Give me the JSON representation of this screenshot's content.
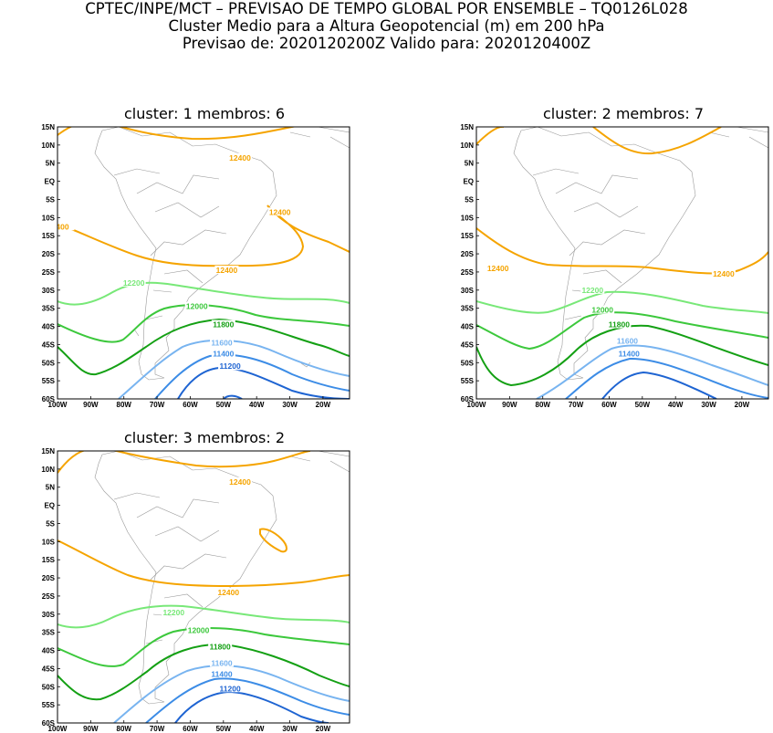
{
  "header": {
    "line1": "CPTEC/INPE/MCT – PREVISAO DE TEMPO GLOBAL POR ENSEMBLE – TQ0126L028",
    "line2": "Cluster Medio para a Altura Geopotencial (m) em 200 hPa",
    "line3": "Previsao de: 2020120200Z    Valido para: 2020120400Z"
  },
  "axes": {
    "lat_labels": [
      "15N",
      "10N",
      "5N",
      "EQ",
      "5S",
      "10S",
      "15S",
      "20S",
      "25S",
      "30S",
      "35S",
      "40S",
      "45S",
      "50S",
      "55S",
      "60S"
    ],
    "lon_labels": [
      "100W",
      "90W",
      "80W",
      "70W",
      "60W",
      "50W",
      "40W",
      "30W",
      "20W"
    ]
  },
  "contour_colors": {
    "12400": "#f5a400",
    "12200": "#78e878",
    "12000": "#3cc83c",
    "11800": "#14a014",
    "11600": "#78b4f0",
    "11400": "#3c8ce6",
    "11200": "#1e64d2"
  },
  "panels": [
    {
      "title": "cluster: 1   membros: 6",
      "labels": [
        {
          "text": "12400",
          "lon": -45,
          "lat": 6.5
        },
        {
          "text": "12400",
          "lon": -33,
          "lat": -8.5
        },
        {
          "text": "400",
          "lon": -98.5,
          "lat": -12.5
        },
        {
          "text": "12400",
          "lon": -49,
          "lat": -24.5
        },
        {
          "text": "12200",
          "lon": -77,
          "lat": -28
        },
        {
          "text": "12000",
          "lon": -58,
          "lat": -34.5
        },
        {
          "text": "11800",
          "lon": -50,
          "lat": -39.5
        },
        {
          "text": "11600",
          "lon": -50.5,
          "lat": -44.5
        },
        {
          "text": "11400",
          "lon": -50,
          "lat": -47.5
        },
        {
          "text": "11200",
          "lon": -48,
          "lat": -51
        }
      ]
    },
    {
      "title": "cluster: 2   membros: 7",
      "labels": [
        {
          "text": "12400",
          "lon": -93.5,
          "lat": -24
        },
        {
          "text": "12400",
          "lon": -25.5,
          "lat": -25.5
        },
        {
          "text": "12200",
          "lon": -65,
          "lat": -30
        },
        {
          "text": "12000",
          "lon": -62,
          "lat": -35.5
        },
        {
          "text": "11800",
          "lon": -57,
          "lat": -39.5
        },
        {
          "text": "11600",
          "lon": -54.5,
          "lat": -44
        },
        {
          "text": "11400",
          "lon": -54,
          "lat": -47.5
        }
      ]
    },
    {
      "title": "cluster: 3   membros: 2",
      "labels": [
        {
          "text": "12400",
          "lon": -45,
          "lat": 6.5
        },
        {
          "text": "12400",
          "lon": -48.5,
          "lat": -24
        },
        {
          "text": "12200",
          "lon": -65,
          "lat": -29.5
        },
        {
          "text": "12000",
          "lon": -57.5,
          "lat": -34.5
        },
        {
          "text": "11800",
          "lon": -51,
          "lat": -39
        },
        {
          "text": "11600",
          "lon": -50.5,
          "lat": -43.5
        },
        {
          "text": "11400",
          "lon": -50.5,
          "lat": -46.5
        },
        {
          "text": "11200",
          "lon": -48,
          "lat": -50.5
        }
      ]
    }
  ]
}
